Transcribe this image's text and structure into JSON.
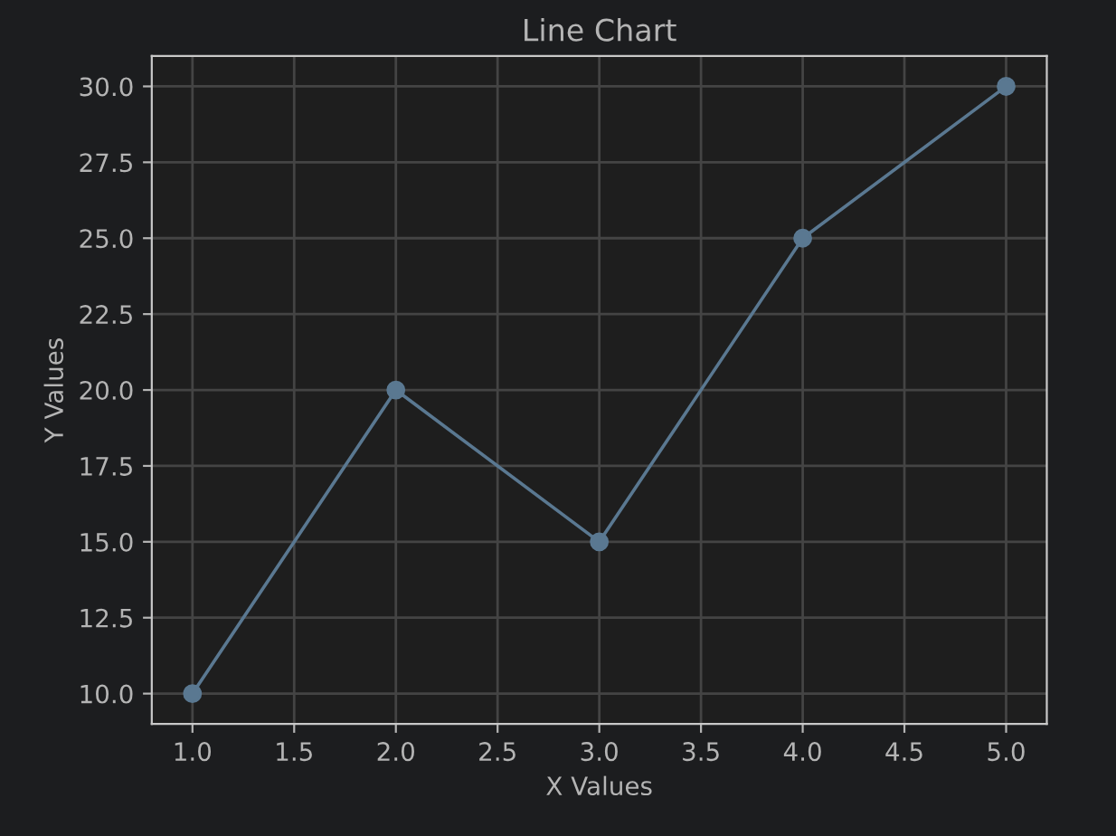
{
  "chart_data": {
    "type": "line",
    "title": "Line Chart",
    "xlabel": "X Values",
    "ylabel": "Y Values",
    "x": [
      1,
      2,
      3,
      4,
      5
    ],
    "series": [
      {
        "color": "#5a7891",
        "values": [
          10,
          20,
          15,
          25,
          30
        ]
      }
    ],
    "xlim": [
      0.8,
      5.2
    ],
    "ylim": [
      9,
      31
    ],
    "xticks": [
      {
        "value": 1,
        "label": "1.0"
      },
      {
        "value": 1.5,
        "label": "1.5"
      },
      {
        "value": 2,
        "label": "2.0"
      },
      {
        "value": 2.5,
        "label": "2.5"
      },
      {
        "value": 3,
        "label": "3.0"
      },
      {
        "value": 3.5,
        "label": "3.5"
      },
      {
        "value": 4,
        "label": "4.0"
      },
      {
        "value": 4.5,
        "label": "4.5"
      },
      {
        "value": 5,
        "label": "5.0"
      }
    ],
    "yticks": [
      {
        "value": 10,
        "label": "10.0"
      },
      {
        "value": 12.5,
        "label": "12.5"
      },
      {
        "value": 15,
        "label": "15.0"
      },
      {
        "value": 17.5,
        "label": "17.5"
      },
      {
        "value": 20,
        "label": "20.0"
      },
      {
        "value": 22.5,
        "label": "22.5"
      },
      {
        "value": 25,
        "label": "25.0"
      },
      {
        "value": 27.5,
        "label": "27.5"
      },
      {
        "value": 30,
        "label": "30.0"
      }
    ],
    "grid": true,
    "marker": "circle",
    "line_style": "solid"
  }
}
